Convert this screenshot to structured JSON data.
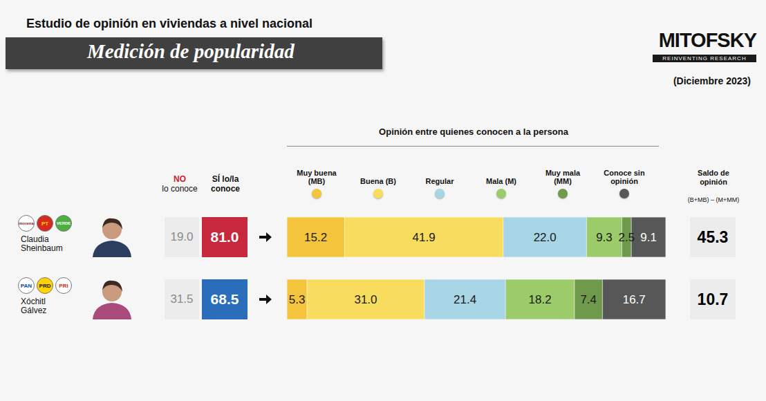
{
  "header": {
    "title": "Estudio de opinión en viviendas a nivel nacional",
    "subtitle": "Medición de popularidad",
    "brand": "MITOFSKY",
    "tagline": "REINVENTING RESEARCH",
    "date": "(Diciembre 2023)"
  },
  "columns": {
    "no_conoce": [
      "NO",
      "lo conoce"
    ],
    "si_conoce": "SÍ lo/la conoce",
    "saldo": "Saldo de opinión",
    "saldo_formula": "(B+MB) – (M+MM)"
  },
  "rows": [
    {
      "name": "Claudia Sheinbaum",
      "parties": [
        {
          "label": "morena",
          "color": "#8b1a2b",
          "bg": "#ffffff"
        },
        {
          "label": "PT",
          "color": "#ffd400",
          "bg": "#d52b1e"
        },
        {
          "label": "VERDE",
          "color": "#ffffff",
          "bg": "#4caf3f"
        }
      ],
      "no_conoce": {
        "value": 19.0,
        "label": "19.0"
      },
      "si_conoce": {
        "value": 81.0,
        "label": "81.0"
      },
      "color": "#c8283c",
      "saldo": {
        "value": 45.3,
        "label": "45.3"
      }
    },
    {
      "name": "Xóchitl Gálvez",
      "parties": [
        {
          "label": "PAN",
          "color": "#0a4a9c",
          "bg": "#ffffff"
        },
        {
          "label": "PRD",
          "color": "#111111",
          "bg": "#ffd400"
        },
        {
          "label": "PRI",
          "color": "#d52b1e",
          "bg": "#ffffff"
        }
      ],
      "no_conoce": {
        "value": 31.5,
        "label": "31.5"
      },
      "si_conoce": {
        "value": 68.5,
        "label": "68.5"
      },
      "color": "#2a6ebb",
      "saldo": {
        "value": 10.7,
        "label": "10.7"
      }
    }
  ],
  "chart_data": {
    "type": "bar",
    "title": "Opinión entre quienes conocen a la persona",
    "orientation": "horizontal",
    "stacked": true,
    "data_labels": true,
    "tick_labels": false,
    "grid": false,
    "categories": [
      "Claudia Sheinbaum",
      "Xóchitl Gálvez"
    ],
    "xlim": [
      0,
      100
    ],
    "xticks": [
      0,
      100
    ],
    "series": [
      {
        "name": "Muy buena (MB)",
        "color": "#f4c43c",
        "values": [
          15.2,
          5.3
        ],
        "value_labels": [
          "15.2",
          "5.3"
        ]
      },
      {
        "name": "Buena (B)",
        "color": "#f8dc5e",
        "values": [
          41.9,
          31.0
        ],
        "value_labels": [
          "41.9",
          "31.0"
        ]
      },
      {
        "name": "Regular",
        "color": "#a8d5e6",
        "values": [
          22.0,
          21.4
        ],
        "value_labels": [
          "22.0",
          "21.4"
        ]
      },
      {
        "name": "Mala (M)",
        "color": "#9ccb6a",
        "values": [
          9.3,
          18.2
        ],
        "value_labels": [
          "9.3",
          "18.2"
        ]
      },
      {
        "name": "Muy mala (MM)",
        "color": "#6f9a4c",
        "values": [
          2.5,
          7.4
        ],
        "value_labels": [
          "2.5",
          "7.4"
        ]
      },
      {
        "name": "Conoce sin opinión",
        "color": "#575757",
        "values": [
          9.1,
          16.7
        ],
        "value_labels": [
          "9.1",
          "16.7"
        ]
      }
    ]
  }
}
